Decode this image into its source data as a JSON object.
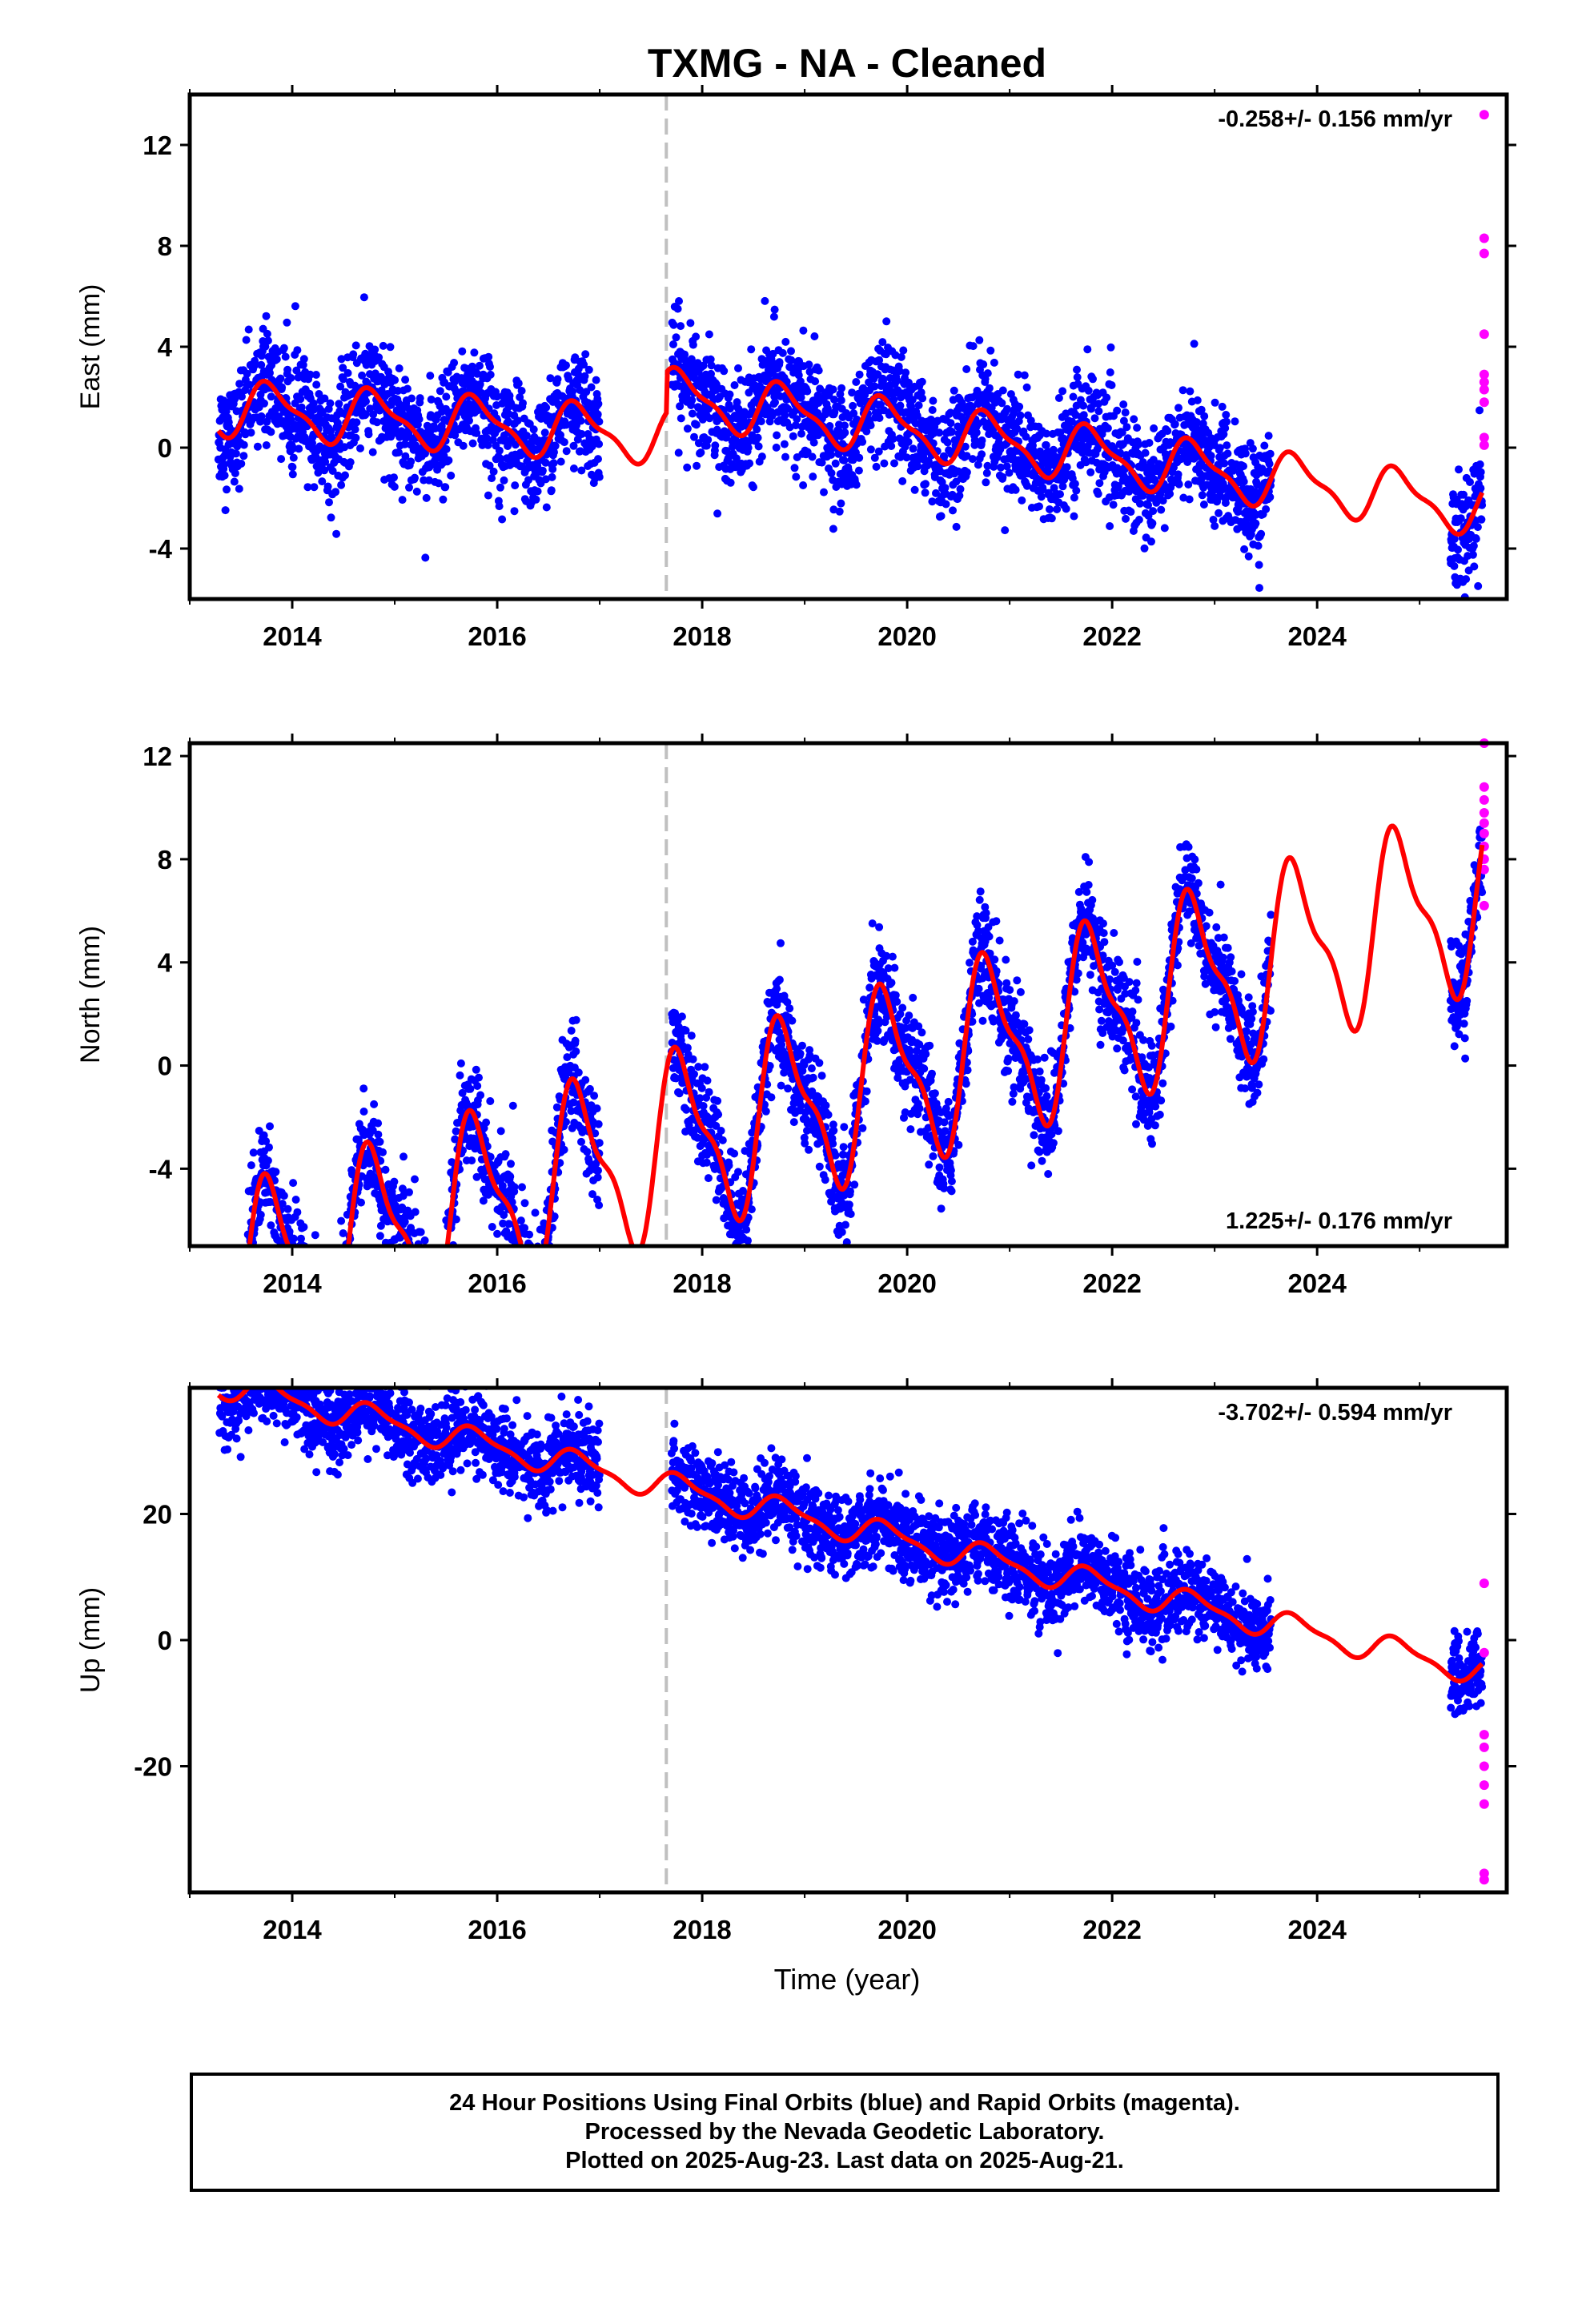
{
  "title": "TXMG  - NA - Cleaned",
  "xlabel": "Time (year)",
  "footer": {
    "line1": "24 Hour Positions Using Final Orbits (blue) and Rapid Orbits (magenta).",
    "line2": "Processed by the Nevada Geodetic Laboratory.",
    "line3": "Plotted on 2025-Aug-23. Last data on 2025-Aug-21."
  },
  "colors": {
    "final": "#0000ff",
    "rapid": "#ff00ff",
    "model": "#ff0000",
    "break": "#c0c0c0"
  },
  "chart_data": [
    {
      "type": "scatter",
      "name": "east",
      "ylabel": "East (mm)",
      "rate_text": "-0.258+/- 0.156 mm/yr",
      "rate_position": "top-right",
      "xlim": [
        2013.0,
        2025.85
      ],
      "ylim": [
        -6,
        14
      ],
      "yticks": [
        -4,
        0,
        4,
        8,
        12
      ],
      "xticks": [
        2014,
        2016,
        2018,
        2020,
        2022,
        2024
      ],
      "break_epoch": 2017.65,
      "gaps": [
        [
          2017.0,
          2017.7
        ],
        [
          2023.55,
          2025.3
        ]
      ],
      "data_span": [
        2013.28,
        2025.61
      ],
      "model": {
        "offset": 0.0,
        "trend": -0.258,
        "amp": 1.0,
        "phase": 0.55,
        "jump": 2.0,
        "noise_sd": 1.1
      },
      "rapid_points": [
        13.2,
        8.3,
        7.7,
        4.5,
        2.9,
        2.6,
        2.3,
        1.8,
        0.4,
        0.1
      ],
      "rapid_x": 2025.63
    },
    {
      "type": "scatter",
      "name": "north",
      "ylabel": "North (mm)",
      "rate_text": "1.225+/- 0.176 mm/yr",
      "rate_position": "bottom-right",
      "xlim": [
        2013.0,
        2025.85
      ],
      "ylim": [
        -7,
        12.5
      ],
      "yticks": [
        -4,
        0,
        4,
        8,
        12
      ],
      "xticks": [
        2014,
        2016,
        2018,
        2020,
        2022,
        2024
      ],
      "break_epoch": 2017.65,
      "gaps": [
        [
          2017.0,
          2017.7
        ],
        [
          2023.55,
          2025.3
        ]
      ],
      "data_span": [
        2013.28,
        2025.61
      ],
      "model": {
        "offset": -1.0,
        "trend": 1.225,
        "amp": 3.2,
        "phase": 0.55,
        "jump": -6.0,
        "noise_sd": 1.0
      },
      "rapid_points": [
        12.5,
        10.8,
        10.3,
        9.8,
        9.4,
        9.0,
        8.5,
        8.0,
        7.6,
        6.2
      ],
      "rapid_x": 2025.63
    },
    {
      "type": "scatter",
      "name": "up",
      "ylabel": "Up (mm)",
      "rate_text": "-3.702+/- 0.594 mm/yr",
      "rate_position": "top-right",
      "xlim": [
        2013.0,
        2025.85
      ],
      "ylim": [
        -40,
        40
      ],
      "yticks": [
        -20,
        0,
        20
      ],
      "xticks": [
        2014,
        2016,
        2018,
        2020,
        2022,
        2024
      ],
      "break_epoch": 2017.65,
      "gaps": [
        [
          2017.0,
          2017.7
        ],
        [
          2023.55,
          2025.3
        ]
      ],
      "data_span": [
        2013.28,
        2025.61
      ],
      "model": {
        "offset": 18.0,
        "trend": -3.702,
        "amp": 2.0,
        "phase": 0.55,
        "jump": 3.0,
        "noise_sd": 3.2
      },
      "rapid_points": [
        9.0,
        -2.0,
        -15.0,
        -17.0,
        -20.0,
        -23.0,
        -26.0,
        -37.0,
        -38.0
      ],
      "rapid_x": 2025.63
    }
  ]
}
